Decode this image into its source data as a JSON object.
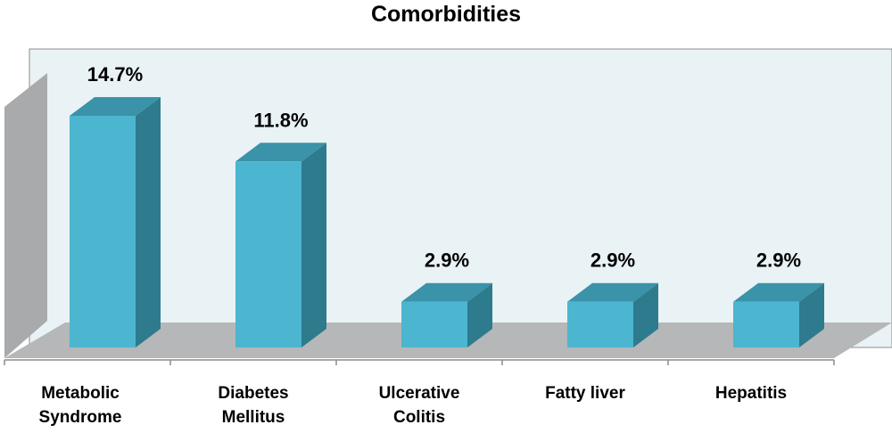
{
  "chart_data": {
    "type": "bar",
    "title": "Comorbidities",
    "categories": [
      [
        "Metabolic",
        "Syndrome"
      ],
      [
        "Diabetes",
        "Mellitus"
      ],
      [
        "Ulcerative",
        "Colitis"
      ],
      [
        "Fatty liver"
      ],
      [
        "Hepatitis"
      ]
    ],
    "values": [
      14.7,
      11.8,
      2.9,
      2.9,
      2.9
    ],
    "value_labels": [
      "14.7%",
      "11.8%",
      "2.9%",
      "2.9%",
      "2.9%"
    ],
    "unit": "%",
    "ylim": [
      0,
      17
    ],
    "grid": false,
    "legend": "none",
    "style": "3d-columns"
  },
  "colors": {
    "bar_front": "#4cb5d0",
    "bar_top": "#3a93a8",
    "bar_side": "#2e7b8d",
    "back_wall": "#e9f2f5",
    "side_wall": "#a8aaab",
    "floor": "#b5b7b8",
    "axis": "#8c8c8c"
  }
}
